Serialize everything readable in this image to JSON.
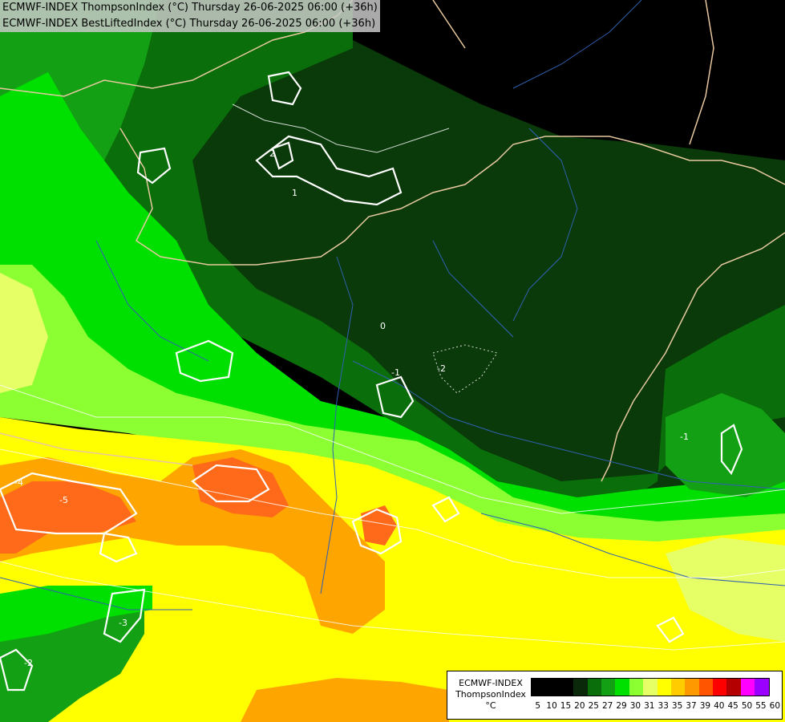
{
  "header": {
    "line1": "ECMWF-INDEX ThompsonIndex (°C) Thursday 26-06-2025 06:00 (+36h)",
    "line2": "ECMWF-INDEX BestLiftedIndex (°C) Thursday 26-06-2025 06:00 (+36h)"
  },
  "legend": {
    "title1": "ECMWF-INDEX",
    "title2": "ThompsonIndex",
    "unit": "°C",
    "ticks": [
      "5",
      "10",
      "15",
      "20",
      "25",
      "27",
      "29",
      "30",
      "31",
      "33",
      "35",
      "37",
      "39",
      "40",
      "45",
      "50",
      "55",
      "60"
    ],
    "colors": [
      "#000000",
      "#000000",
      "#000000",
      "#0a280a",
      "#0a6e0a",
      "#14a014",
      "#00e000",
      "#8cff32",
      "#e6ff66",
      "#ffff00",
      "#ffcc00",
      "#ff9900",
      "#ff5500",
      "#ff0000",
      "#b40000",
      "#ff00ff",
      "#9900ff",
      "#0000ff",
      "#0033ff"
    ]
  },
  "contour_labels": [
    "2",
    "1",
    "0",
    "-1",
    "-2",
    "-4",
    "-5",
    "-3",
    "-2",
    "-1"
  ],
  "colors": {
    "very_dark_green": "#0a3a0a",
    "dark_green": "#0a6e0a",
    "green": "#14a014",
    "bright_green": "#00e000",
    "lime": "#8cff32",
    "yellow": "#ffff00",
    "orange": "#ffa500",
    "red_orange": "#ff6a1a"
  }
}
